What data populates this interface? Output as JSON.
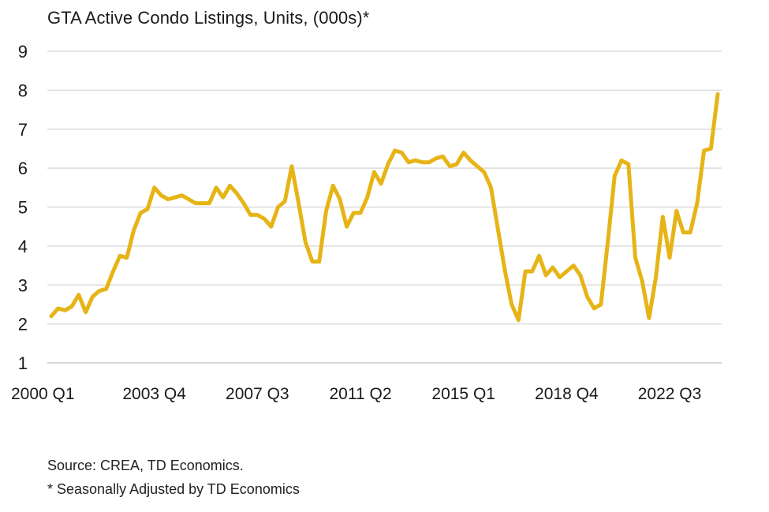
{
  "chart_data": {
    "type": "line",
    "title": "GTA Active Condo Listings, Units, (000s)*",
    "xlabel": "",
    "ylabel": "",
    "ylim": [
      1,
      9
    ],
    "yticks": [
      1,
      2,
      3,
      4,
      5,
      6,
      7,
      8,
      9
    ],
    "grid": true,
    "legend": "none",
    "line_color": "#E6B416",
    "grid_color": "#dcdcdc",
    "x_tick_labels": [
      {
        "label": "2000 Q1",
        "index": 0
      },
      {
        "label": "2003 Q4",
        "index": 15
      },
      {
        "label": "2007 Q3",
        "index": 30
      },
      {
        "label": "2011 Q2",
        "index": 45
      },
      {
        "label": "2015 Q1",
        "index": 60
      },
      {
        "label": "2018 Q4",
        "index": 75
      },
      {
        "label": "2022 Q3",
        "index": 90
      }
    ],
    "x": [
      "2000 Q1",
      "2000 Q2",
      "2000 Q3",
      "2000 Q4",
      "2001 Q1",
      "2001 Q2",
      "2001 Q3",
      "2001 Q4",
      "2002 Q1",
      "2002 Q2",
      "2002 Q3",
      "2002 Q4",
      "2003 Q1",
      "2003 Q2",
      "2003 Q3",
      "2003 Q4",
      "2004 Q1",
      "2004 Q2",
      "2004 Q3",
      "2004 Q4",
      "2005 Q1",
      "2005 Q2",
      "2005 Q3",
      "2005 Q4",
      "2006 Q1",
      "2006 Q2",
      "2006 Q3",
      "2006 Q4",
      "2007 Q1",
      "2007 Q2",
      "2007 Q3",
      "2007 Q4",
      "2008 Q1",
      "2008 Q2",
      "2008 Q3",
      "2008 Q4",
      "2009 Q1",
      "2009 Q2",
      "2009 Q3",
      "2009 Q4",
      "2010 Q1",
      "2010 Q2",
      "2010 Q3",
      "2010 Q4",
      "2011 Q1",
      "2011 Q2",
      "2011 Q3",
      "2011 Q4",
      "2012 Q1",
      "2012 Q2",
      "2012 Q3",
      "2012 Q4",
      "2013 Q1",
      "2013 Q2",
      "2013 Q3",
      "2013 Q4",
      "2014 Q1",
      "2014 Q2",
      "2014 Q3",
      "2014 Q4",
      "2015 Q1",
      "2015 Q2",
      "2015 Q3",
      "2015 Q4",
      "2016 Q1",
      "2016 Q2",
      "2016 Q3",
      "2016 Q4",
      "2017 Q1",
      "2017 Q2",
      "2017 Q3",
      "2017 Q4",
      "2018 Q1",
      "2018 Q2",
      "2018 Q3",
      "2018 Q4",
      "2019 Q1",
      "2019 Q2",
      "2019 Q3",
      "2019 Q4",
      "2020 Q1",
      "2020 Q2",
      "2020 Q3",
      "2020 Q4",
      "2021 Q1",
      "2021 Q2",
      "2021 Q3",
      "2021 Q4",
      "2022 Q1",
      "2022 Q2",
      "2022 Q3",
      "2022 Q4",
      "2023 Q1",
      "2023 Q2",
      "2023 Q3",
      "2023 Q4",
      "2024 Q1",
      "2024 Q2"
    ],
    "series": [
      {
        "values": [
          2.2,
          2.4,
          2.35,
          2.45,
          2.75,
          2.3,
          2.7,
          2.85,
          2.9,
          3.35,
          3.75,
          3.7,
          4.4,
          4.85,
          4.95,
          5.5,
          5.3,
          5.2,
          5.25,
          5.3,
          5.2,
          5.1,
          5.1,
          5.1,
          5.5,
          5.25,
          5.55,
          5.35,
          5.1,
          4.8,
          4.8,
          4.7,
          4.5,
          5.0,
          5.15,
          6.05,
          5.1,
          4.1,
          3.6,
          3.6,
          4.9,
          5.55,
          5.2,
          4.5,
          4.85,
          4.85,
          5.25,
          5.9,
          5.6,
          6.1,
          6.45,
          6.4,
          6.15,
          6.2,
          6.15,
          6.15,
          6.25,
          6.3,
          6.05,
          6.1,
          6.4,
          6.2,
          6.05,
          5.9,
          5.5,
          4.45,
          3.4,
          2.5,
          2.1,
          3.35,
          3.35,
          3.75,
          3.25,
          3.45,
          3.2,
          3.35,
          3.5,
          3.25,
          2.7,
          2.4,
          2.5,
          4.1,
          5.8,
          6.2,
          6.1,
          3.7,
          3.1,
          2.15,
          3.2,
          4.75,
          3.7,
          4.9,
          4.35,
          4.35,
          5.1,
          6.45,
          6.5,
          7.9
        ]
      }
    ]
  },
  "notes": {
    "source": "Source: CREA, TD Economics.",
    "adjusted": "* Seasonally Adjusted by TD Economics"
  }
}
